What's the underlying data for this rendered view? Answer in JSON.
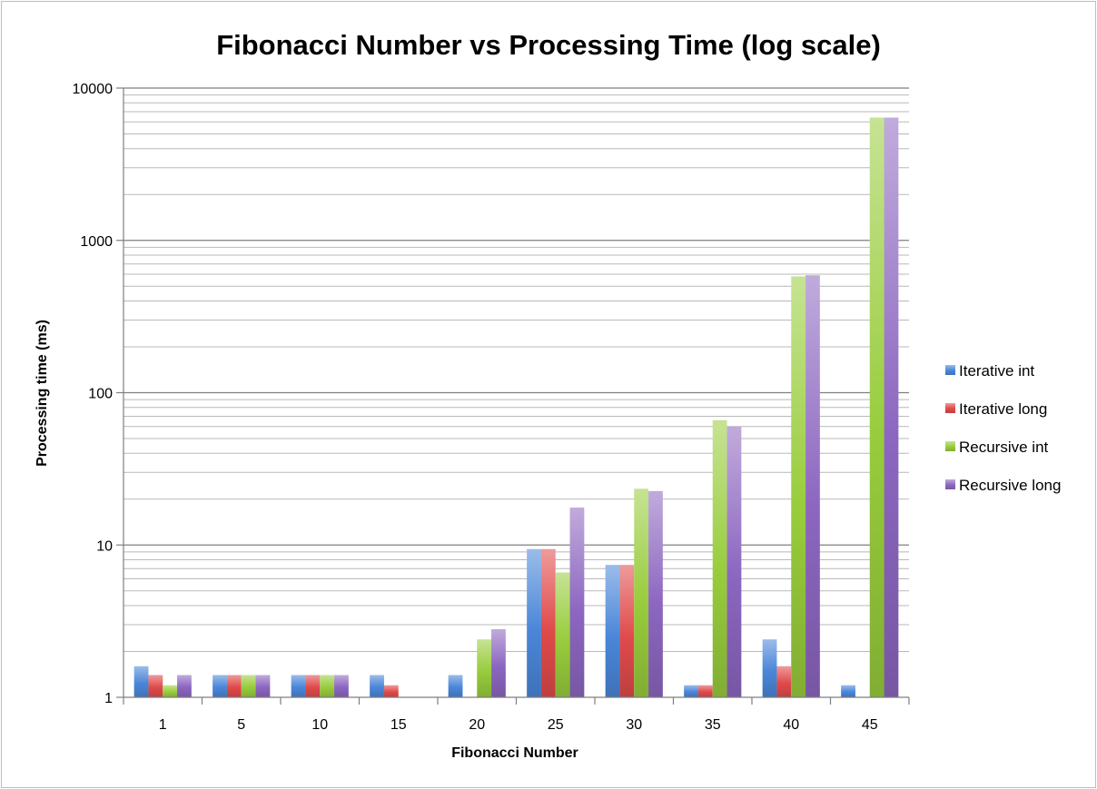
{
  "chart_data": {
    "type": "bar",
    "title": "Fibonacci Number vs Processing Time (log scale)",
    "xlabel": "Fibonacci Number",
    "ylabel": "Processing time (ms)",
    "yscale": "log",
    "ylim": [
      1,
      10000
    ],
    "yticks": [
      "1",
      "10",
      "100",
      "1000",
      "10000"
    ],
    "grid": true,
    "legend_position": "right",
    "categories": [
      "1",
      "5",
      "10",
      "15",
      "20",
      "25",
      "30",
      "35",
      "40",
      "45"
    ],
    "series": [
      {
        "name": "Iterative int",
        "color": "#4a86d8",
        "values": [
          1.6,
          1.4,
          1.4,
          1.4,
          1.4,
          9.4,
          7.4,
          1.2,
          2.4,
          1.2
        ]
      },
      {
        "name": "Iterative long",
        "color": "#e04a4a",
        "values": [
          1.4,
          1.4,
          1.4,
          1.2,
          null,
          9.4,
          7.4,
          1.2,
          1.6,
          null
        ]
      },
      {
        "name": "Recursive int",
        "color": "#98cc3c",
        "values": [
          1.2,
          1.4,
          1.4,
          null,
          2.4,
          6.6,
          23.4,
          66,
          580,
          6400
        ]
      },
      {
        "name": "Recursive long",
        "color": "#8c66c0",
        "values": [
          1.4,
          1.4,
          1.4,
          null,
          2.8,
          17.6,
          22.6,
          60,
          590,
          6400
        ]
      }
    ]
  }
}
